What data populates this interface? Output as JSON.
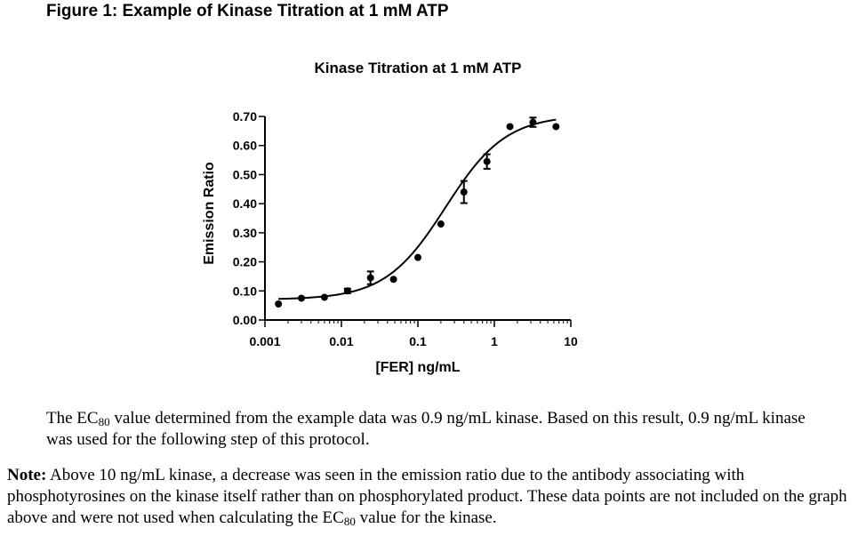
{
  "figure_title": "Figure 1: Example of Kinase Titration at 1 mM ATP",
  "chart_data": {
    "type": "scatter",
    "title": "Kinase Titration at 1 mM ATP",
    "xlabel": "[FER] ng/mL",
    "ylabel": "Emission Ratio",
    "xscale": "log",
    "xlim": [
      0.001,
      10
    ],
    "ylim": [
      0.0,
      0.7
    ],
    "x_tick_labels": [
      "0.001",
      "0.01",
      "0.1",
      "1",
      "10"
    ],
    "y_tick_labels": [
      "0.00",
      "0.10",
      "0.20",
      "0.30",
      "0.40",
      "0.50",
      "0.60",
      "0.70"
    ],
    "x": [
      0.0015,
      0.003,
      0.006,
      0.012,
      0.024,
      0.048,
      0.1,
      0.2,
      0.4,
      0.8,
      1.6,
      3.2,
      6.4
    ],
    "y": [
      0.055,
      0.075,
      0.078,
      0.1,
      0.145,
      0.14,
      0.215,
      0.33,
      0.44,
      0.545,
      0.665,
      0.68,
      0.665
    ],
    "yerr": [
      0,
      0,
      0,
      0.008,
      0.022,
      0,
      0,
      0,
      0.038,
      0.025,
      0,
      0.016,
      0
    ],
    "fit_curve": {
      "bottom": 0.07,
      "top": 0.705,
      "ec50": 0.23,
      "hill": 1.1
    },
    "grid": false,
    "legend": "none"
  },
  "caption": {
    "part1": "The EC",
    "sub": "80",
    "part2": " value determined from the example data was 0.9 ng/mL kinase.  Based on this result, 0.9 ng/mL kinase was used for the following step of this protocol."
  },
  "note": {
    "label": "Note:",
    "part1": " Above 10 ng/mL kinase, a decrease was seen in the emission ratio due to the antibody associating with phosphotyrosines on the kinase itself rather than on phosphorylated product. These data points are not included on the graph above and were not used when calculating the EC",
    "sub": "80",
    "part2": " value for the kinase."
  }
}
